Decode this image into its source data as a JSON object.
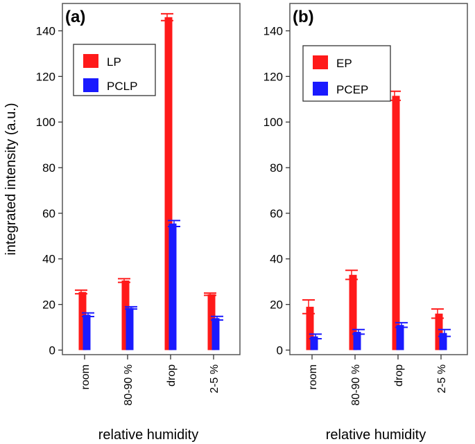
{
  "chart_data": [
    {
      "type": "bar",
      "panel_label": "(a)",
      "categories": [
        "room",
        "80-90 %",
        "drop",
        "2-5 %"
      ],
      "series": [
        {
          "name": "LP",
          "color": "#ff1a1a",
          "values": [
            25.5,
            30.5,
            146,
            24.5
          ],
          "errors": [
            0.8,
            0.8,
            1.5,
            0.5
          ]
        },
        {
          "name": "PCLP",
          "color": "#1a1aff",
          "values": [
            15.5,
            18.5,
            55.5,
            14
          ],
          "errors": [
            0.8,
            0.5,
            1.3,
            0.8
          ]
        }
      ],
      "ylabel": "integrated intensity (a.u.)",
      "xlabel": "relative humidity",
      "yticks": [
        0,
        20,
        40,
        60,
        80,
        100,
        120,
        140
      ],
      "ylim": [
        -2,
        152
      ],
      "legend_position": "top-left"
    },
    {
      "type": "bar",
      "panel_label": "(b)",
      "categories": [
        "room",
        "80-90 %",
        "drop",
        "2-5 %"
      ],
      "series": [
        {
          "name": "EP",
          "color": "#ff1a1a",
          "values": [
            19,
            33,
            111.5,
            16
          ],
          "errors": [
            3,
            2,
            2,
            2
          ]
        },
        {
          "name": "PCEP",
          "color": "#1a1aff",
          "values": [
            6,
            8,
            11,
            7.5
          ],
          "errors": [
            1,
            1,
            1,
            1.5
          ]
        }
      ],
      "ylabel": "",
      "xlabel": "relative humidity",
      "yticks": [
        0,
        20,
        40,
        60,
        80,
        100,
        120,
        140
      ],
      "ylim": [
        -2,
        152
      ],
      "legend_position": "top-left"
    }
  ]
}
